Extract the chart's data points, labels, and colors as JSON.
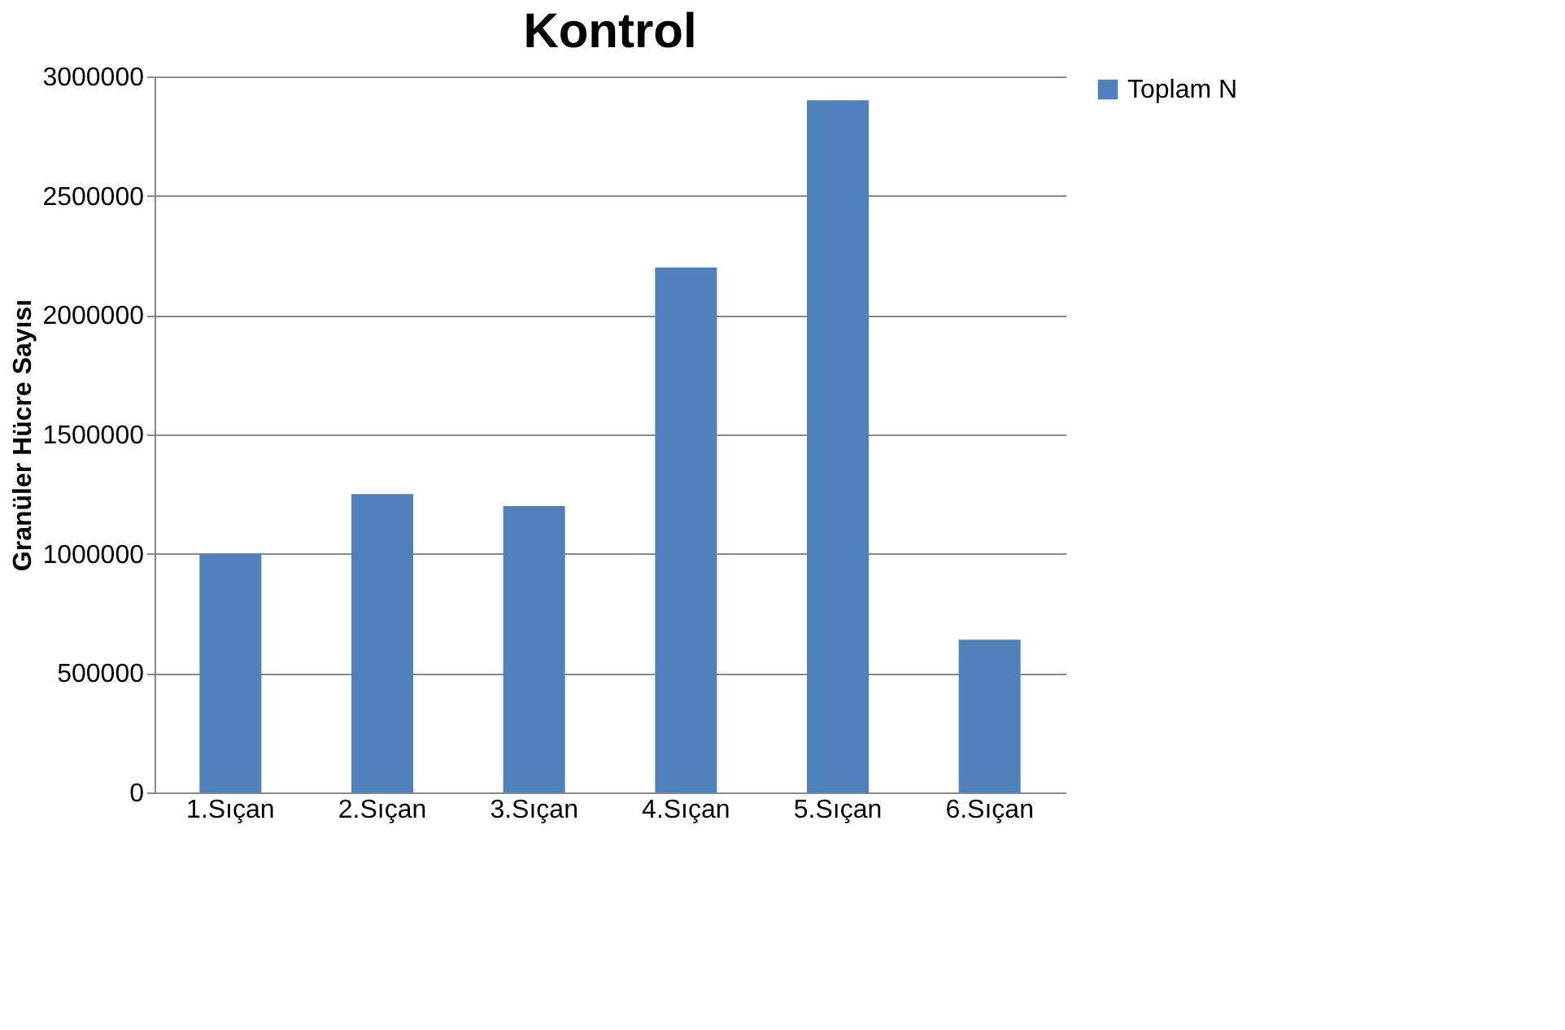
{
  "chart_data": {
    "type": "bar",
    "title": "Kontrol",
    "ylabel": "Granüler Hücre Sayısı",
    "categories": [
      "1.Sıçan",
      "2.Sıçan",
      "3.Sıçan",
      "4.Sıçan",
      "5.Sıçan",
      "6.Sıçan"
    ],
    "series": [
      {
        "name": "Toplam N",
        "color": "#4f81bd",
        "values": [
          1000000,
          1250000,
          1200000,
          2200000,
          2900000,
          640000
        ]
      }
    ],
    "ylim": [
      0,
      3000000
    ],
    "yticks": [
      0,
      500000,
      1000000,
      1500000,
      2000000,
      2500000,
      3000000
    ],
    "grid": "y",
    "legend": "right"
  }
}
